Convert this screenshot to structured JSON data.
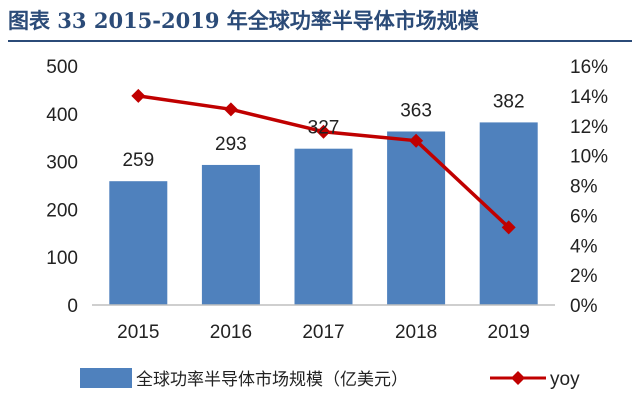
{
  "figure": {
    "title": "图表 33   2015-2019 年全球功率半导体市场规模"
  },
  "chart_data": {
    "type": "bar",
    "categories": [
      "2015",
      "2016",
      "2017",
      "2018",
      "2019"
    ],
    "series": [
      {
        "name": "全球功率半导体市场规模（亿美元）",
        "type": "bar",
        "axis": "left",
        "color": "#4f81bd",
        "values": [
          259,
          293,
          327,
          363,
          382
        ],
        "data_labels": [
          "259",
          "293",
          "327",
          "363",
          "382"
        ]
      },
      {
        "name": "yoy",
        "type": "line",
        "axis": "right",
        "color": "#c00000",
        "marker": "diamond",
        "values": [
          0.14,
          0.131,
          0.116,
          0.11,
          0.052
        ]
      }
    ],
    "y_left": {
      "lim": [
        0,
        500
      ],
      "ticks": [
        "0",
        "100",
        "200",
        "300",
        "400",
        "500"
      ]
    },
    "y_right": {
      "lim": [
        0,
        0.16
      ],
      "ticks": [
        "0%",
        "2%",
        "4%",
        "6%",
        "8%",
        "10%",
        "12%",
        "14%",
        "16%"
      ]
    },
    "xlabel": "",
    "ylabel": "",
    "grid": false,
    "legend": "bottom"
  }
}
